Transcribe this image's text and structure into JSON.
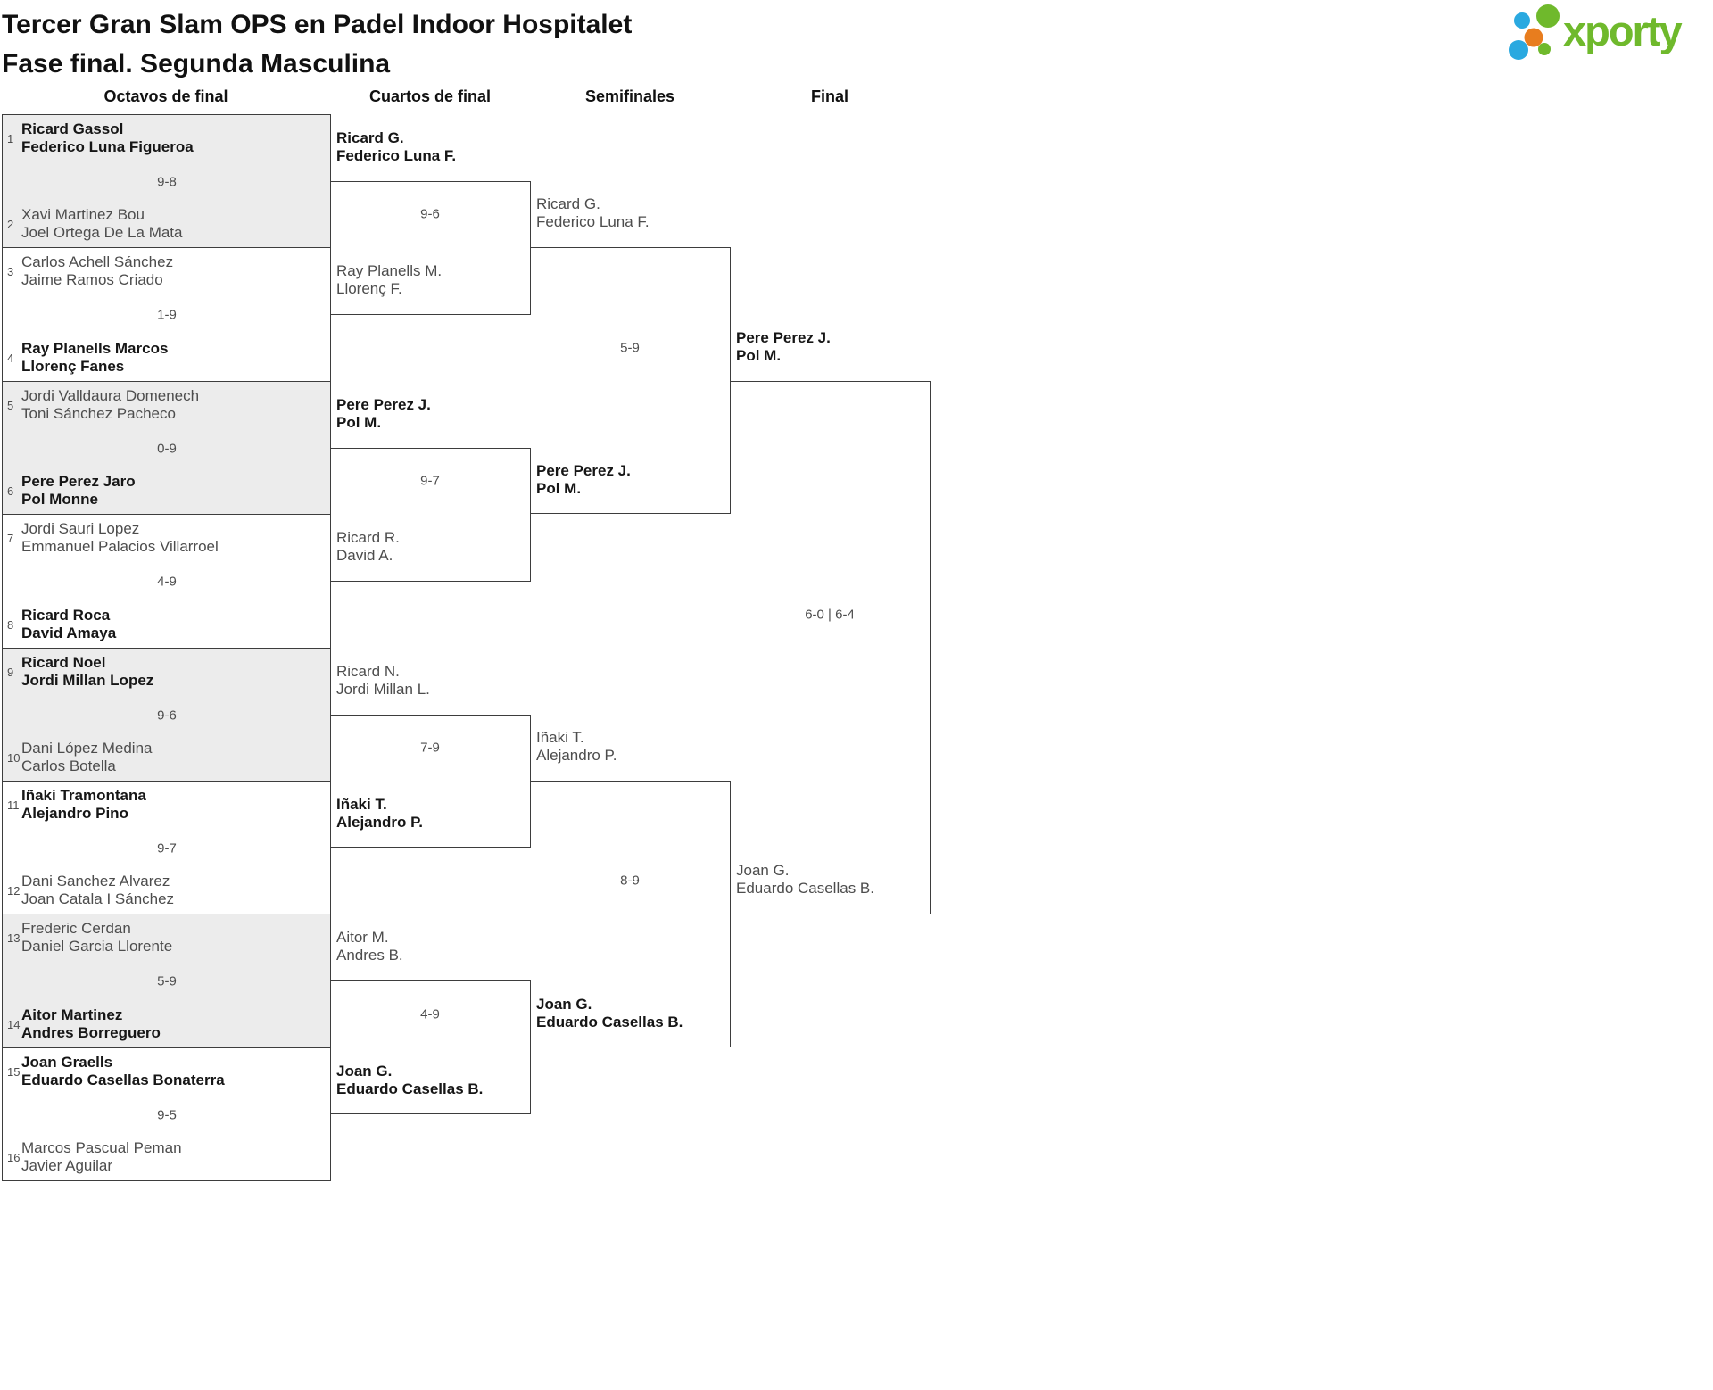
{
  "page": {
    "title_line1": "Tercer Gran Slam OPS en Padel Indoor Hospitalet",
    "title_line2": "Fase final. Segunda Masculina",
    "logo_text": "xporty"
  },
  "rounds": [
    {
      "label": "Octavos de final"
    },
    {
      "label": "Cuartos de final"
    },
    {
      "label": "Semifinales"
    },
    {
      "label": "Final"
    }
  ],
  "colors": {
    "shaded_box": "#ececec",
    "border": "#3d3d3d",
    "winner_text": "#161616",
    "loser_text": "#4d4d4d",
    "score_text": "#4d4d4d",
    "seed_text": "#4d4d4d",
    "title_text": "#111111",
    "logo_green": "#6fb92c",
    "logo_blue": "#2aa9e0",
    "logo_orange": "#e87d1e"
  },
  "bracket": {
    "octavos": [
      {
        "shaded": true,
        "score": "9-8",
        "top": {
          "seed": "1",
          "lines": [
            "Ricard Gassol",
            "Federico Luna Figueroa"
          ],
          "winner": true
        },
        "bottom": {
          "seed": "2",
          "lines": [
            "Xavi Martinez Bou",
            "Joel Ortega De La Mata"
          ],
          "winner": false
        }
      },
      {
        "shaded": false,
        "score": "1-9",
        "top": {
          "seed": "3",
          "lines": [
            "Carlos Achell Sánchez",
            "Jaime Ramos Criado"
          ],
          "winner": false
        },
        "bottom": {
          "seed": "4",
          "lines": [
            "Ray Planells Marcos",
            "Llorenç Fanes"
          ],
          "winner": true
        }
      },
      {
        "shaded": true,
        "score": "0-9",
        "top": {
          "seed": "5",
          "lines": [
            "Jordi Valldaura Domenech",
            "Toni Sánchez Pacheco"
          ],
          "winner": false
        },
        "bottom": {
          "seed": "6",
          "lines": [
            "Pere Perez Jaro",
            "Pol Monne"
          ],
          "winner": true
        }
      },
      {
        "shaded": false,
        "score": "4-9",
        "top": {
          "seed": "7",
          "lines": [
            "Jordi Sauri Lopez",
            "Emmanuel Palacios Villarroel"
          ],
          "winner": false
        },
        "bottom": {
          "seed": "8",
          "lines": [
            "Ricard Roca",
            "David Amaya"
          ],
          "winner": true
        }
      },
      {
        "shaded": true,
        "score": "9-6",
        "top": {
          "seed": "9",
          "lines": [
            "Ricard Noel",
            "Jordi Millan Lopez"
          ],
          "winner": true
        },
        "bottom": {
          "seed": "10",
          "lines": [
            "Dani López Medina",
            "Carlos Botella"
          ],
          "winner": false
        }
      },
      {
        "shaded": false,
        "score": "9-7",
        "top": {
          "seed": "11",
          "lines": [
            "Iñaki Tramontana",
            "Alejandro Pino"
          ],
          "winner": true
        },
        "bottom": {
          "seed": "12",
          "lines": [
            "Dani Sanchez Alvarez",
            "Joan Catala I Sánchez"
          ],
          "winner": false
        }
      },
      {
        "shaded": true,
        "score": "5-9",
        "top": {
          "seed": "13",
          "lines": [
            "Frederic Cerdan",
            "Daniel Garcia Llorente"
          ],
          "winner": false
        },
        "bottom": {
          "seed": "14",
          "lines": [
            "Aitor Martinez",
            "Andres Borreguero"
          ],
          "winner": true
        }
      },
      {
        "shaded": false,
        "score": "9-5",
        "top": {
          "seed": "15",
          "lines": [
            "Joan Graells",
            "Eduardo Casellas Bonaterra"
          ],
          "winner": true
        },
        "bottom": {
          "seed": "16",
          "lines": [
            "Marcos Pascual Peman",
            "Javier Aguilar"
          ],
          "winner": false
        }
      }
    ],
    "cuartos": [
      {
        "score": "9-6",
        "top": {
          "lines": [
            "Ricard G.",
            "Federico Luna F."
          ],
          "winner": true
        },
        "bottom": {
          "lines": [
            "Ray Planells M.",
            "Llorenç F."
          ],
          "winner": false
        }
      },
      {
        "score": "9-7",
        "top": {
          "lines": [
            "Pere Perez J.",
            "Pol M."
          ],
          "winner": true
        },
        "bottom": {
          "lines": [
            "Ricard R.",
            "David A."
          ],
          "winner": false
        }
      },
      {
        "score": "7-9",
        "top": {
          "lines": [
            "Ricard N.",
            "Jordi Millan L."
          ],
          "winner": false
        },
        "bottom": {
          "lines": [
            "Iñaki T.",
            "Alejandro P."
          ],
          "winner": true
        }
      },
      {
        "score": "4-9",
        "top": {
          "lines": [
            "Aitor M.",
            "Andres B."
          ],
          "winner": false
        },
        "bottom": {
          "lines": [
            "Joan G.",
            "Eduardo Casellas B."
          ],
          "winner": true
        }
      }
    ],
    "semifinales": [
      {
        "score": "5-9",
        "top": {
          "lines": [
            "Ricard G.",
            "Federico Luna F."
          ],
          "winner": false
        },
        "bottom": {
          "lines": [
            "Pere Perez J.",
            "Pol M."
          ],
          "winner": true
        }
      },
      {
        "score": "8-9",
        "top": {
          "lines": [
            "Iñaki T.",
            "Alejandro P."
          ],
          "winner": false
        },
        "bottom": {
          "lines": [
            "Joan G.",
            "Eduardo Casellas B."
          ],
          "winner": true
        }
      }
    ],
    "final": [
      {
        "score": "6-0 | 6-4",
        "top": {
          "lines": [
            "Pere Perez J.",
            "Pol M."
          ],
          "winner": true
        },
        "bottom": {
          "lines": [
            "Joan G.",
            "Eduardo Casellas B."
          ],
          "winner": false
        }
      }
    ]
  }
}
